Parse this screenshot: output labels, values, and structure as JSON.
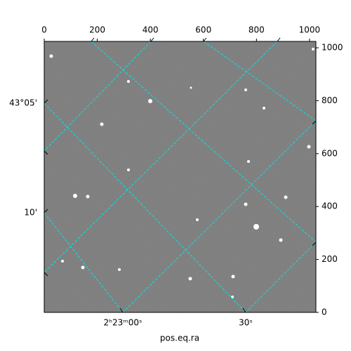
{
  "chart_data": {
    "type": "image",
    "xlabel": "pos.eq.ra",
    "xlim": [
      0,
      1024
    ],
    "xticks": [
      0,
      200,
      400,
      600,
      800,
      1000
    ],
    "ylim": [
      0,
      1024
    ],
    "yticks": [
      0,
      200,
      400,
      600,
      800,
      1000
    ],
    "ra_tick_labels": [
      "2ʰ23ᵐ00ˢ",
      "30ˢ"
    ],
    "dec_tick_labels": [
      "43°05'",
      "10'"
    ],
    "grid_color": "#00e5e5"
  }
}
